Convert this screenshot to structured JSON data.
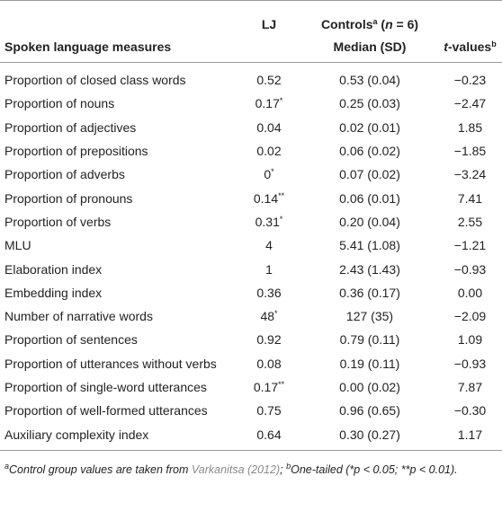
{
  "table": {
    "header": {
      "measure": "Spoken language measures",
      "lj": "LJ",
      "controls": {
        "text": "Controls",
        "sup": "a",
        "open": "(",
        "n": "n",
        "eq": "= 6)"
      },
      "median": "Median (SD)",
      "t": {
        "italic": "t",
        "text": "-values",
        "sup": "b"
      }
    },
    "rows": [
      [
        "Proportion of closed class words",
        {
          "value": "0.52"
        },
        "0.53 (0.04)",
        "−0.23"
      ],
      [
        "Proportion of nouns",
        {
          "value": "0.17",
          "mark": "*"
        },
        "0.25 (0.03)",
        "−2.47"
      ],
      [
        "Proportion of adjectives",
        {
          "value": "0.04"
        },
        "0.02 (0.01)",
        "1.85"
      ],
      [
        "Proportion of prepositions",
        {
          "value": "0.02"
        },
        "0.06 (0.02)",
        "−1.85"
      ],
      [
        "Proportion of adverbs",
        {
          "value": "0",
          "mark": "*"
        },
        "0.07 (0.02)",
        "−3.24"
      ],
      [
        "Proportion of pronouns",
        {
          "value": "0.14",
          "mark": "**"
        },
        "0.06 (0.01)",
        "7.41"
      ],
      [
        "Proportion of verbs",
        {
          "value": "0.31",
          "mark": "*"
        },
        "0.20 (0.04)",
        "2.55"
      ],
      [
        "MLU",
        {
          "value": "4"
        },
        "5.41 (1.08)",
        "−1.21"
      ],
      [
        "Elaboration index",
        {
          "value": "1"
        },
        "2.43 (1.43)",
        "−0.93"
      ],
      [
        "Embedding index",
        {
          "value": "0.36"
        },
        "0.36 (0.17)",
        "0.00"
      ],
      [
        "Number of narrative words",
        {
          "value": "48",
          "mark": "*"
        },
        "127 (35)",
        "−2.09"
      ],
      [
        "Proportion of sentences",
        {
          "value": "0.92"
        },
        "0.79 (0.11)",
        "1.09"
      ],
      [
        "Proportion of utterances without verbs",
        {
          "value": "0.08"
        },
        "0.19 (0.11)",
        "−0.93"
      ],
      [
        "Proportion of single-word utterances",
        {
          "value": "0.17",
          "mark": "**"
        },
        "0.00 (0.02)",
        "7.87"
      ],
      [
        "Proportion of well-formed utterances",
        {
          "value": "0.75"
        },
        "0.96 (0.65)",
        "−0.30"
      ],
      [
        "Auxiliary complexity index",
        {
          "value": "0.64"
        },
        "0.30 (0.27)",
        "1.17"
      ]
    ]
  },
  "footnote": {
    "sup_a": "a",
    "text_1": "Control group values are taken from",
    "link": "Varkanitsa (2012)",
    "text_2": ";",
    "sup_b": "b",
    "text_3": "One-tailed (*p < 0.05; **p < 0.01)."
  }
}
